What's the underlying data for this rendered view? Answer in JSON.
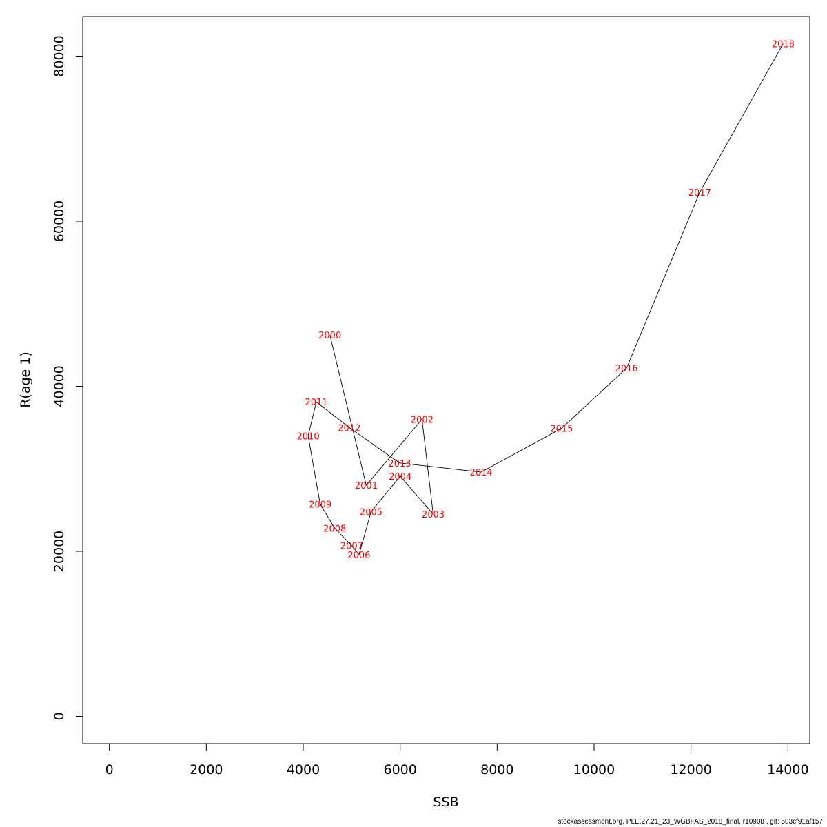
{
  "chart_data": {
    "type": "line",
    "xlabel": "SSB",
    "ylabel": "R(age 1)",
    "xlim": [
      -550,
      14450
    ],
    "ylim": [
      -3300,
      84800
    ],
    "x_ticks": [
      0,
      2000,
      4000,
      6000,
      8000,
      10000,
      12000,
      14000
    ],
    "y_ticks": [
      0,
      20000,
      40000,
      60000,
      80000
    ],
    "x_tick_labels": [
      "0",
      "2000",
      "4000",
      "6000",
      "8000",
      "10000",
      "12000",
      "14000"
    ],
    "y_tick_labels": [
      "0",
      "20000",
      "40000",
      "60000",
      "80000"
    ],
    "label_color": "#ff0000",
    "line_color": "#000000",
    "points": [
      {
        "label": "2000",
        "x": 4550,
        "y": 46200
      },
      {
        "label": "2001",
        "x": 5300,
        "y": 28000
      },
      {
        "label": "2002",
        "x": 6450,
        "y": 36000
      },
      {
        "label": "2003",
        "x": 6680,
        "y": 24500
      },
      {
        "label": "2004",
        "x": 6000,
        "y": 29100
      },
      {
        "label": "2005",
        "x": 5400,
        "y": 24800
      },
      {
        "label": "2006",
        "x": 5150,
        "y": 19600
      },
      {
        "label": "2007",
        "x": 5000,
        "y": 20700
      },
      {
        "label": "2008",
        "x": 4650,
        "y": 22800
      },
      {
        "label": "2009",
        "x": 4350,
        "y": 25700
      },
      {
        "label": "2010",
        "x": 4100,
        "y": 34000
      },
      {
        "label": "2011",
        "x": 4270,
        "y": 38100
      },
      {
        "label": "2012",
        "x": 4950,
        "y": 35000
      },
      {
        "label": "2013",
        "x": 5990,
        "y": 30700
      },
      {
        "label": "2014",
        "x": 7670,
        "y": 29600
      },
      {
        "label": "2015",
        "x": 9330,
        "y": 34900
      },
      {
        "label": "2016",
        "x": 10670,
        "y": 42200
      },
      {
        "label": "2017",
        "x": 12180,
        "y": 63500
      },
      {
        "label": "2018",
        "x": 13900,
        "y": 81500
      }
    ]
  },
  "footer": "stockassessment.org, PLE.27.21_23_WGBFAS_2018_final, r10908 , git: 503cf91af157"
}
